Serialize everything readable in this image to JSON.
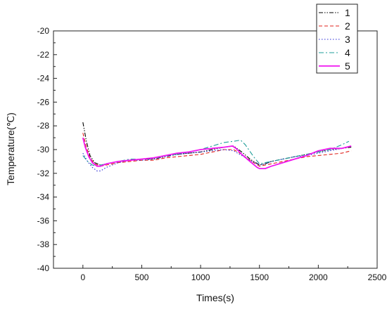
{
  "chart_data": {
    "type": "line",
    "title": "",
    "xlabel": "Times(s)",
    "ylabel": "Temperature(℃)",
    "xlim": [
      -250,
      2500
    ],
    "ylim": [
      -40,
      -20
    ],
    "xticks": [
      0,
      500,
      1000,
      1500,
      2000,
      2500
    ],
    "yticks": [
      -40,
      -38,
      -36,
      -34,
      -32,
      -30,
      -28,
      -26,
      -24,
      -22,
      -20
    ],
    "grid": false,
    "legend": "top-right",
    "series": [
      {
        "name": "1",
        "color": "#000000",
        "dash": "dash-dot-dot",
        "x": [
          0,
          30,
          60,
          100,
          150,
          200,
          300,
          400,
          500,
          600,
          700,
          800,
          900,
          1000,
          1100,
          1200,
          1280,
          1350,
          1420,
          1500,
          1550,
          1600,
          1700,
          1800,
          1900,
          2000,
          2100,
          2200,
          2280
        ],
        "y": [
          -27.7,
          -29.3,
          -30.5,
          -31.1,
          -31.3,
          -31.2,
          -31.0,
          -30.9,
          -30.8,
          -30.8,
          -30.6,
          -30.4,
          -30.3,
          -30.2,
          -30.0,
          -29.8,
          -29.7,
          -30.2,
          -30.8,
          -31.3,
          -31.2,
          -31.0,
          -30.8,
          -30.6,
          -30.4,
          -30.2,
          -30.0,
          -29.9,
          -29.8
        ]
      },
      {
        "name": "2",
        "color": "#e0201b",
        "dash": "dash",
        "x": [
          0,
          30,
          60,
          100,
          150,
          200,
          300,
          400,
          500,
          600,
          700,
          800,
          900,
          1000,
          1100,
          1200,
          1280,
          1350,
          1420,
          1500,
          1550,
          1600,
          1700,
          1800,
          1900,
          2000,
          2100,
          2200,
          2280
        ],
        "y": [
          -28.6,
          -29.8,
          -30.7,
          -31.2,
          -31.4,
          -31.3,
          -31.1,
          -31.0,
          -30.9,
          -30.9,
          -30.7,
          -30.6,
          -30.5,
          -30.4,
          -30.2,
          -30.0,
          -30.0,
          -30.4,
          -30.9,
          -31.4,
          -31.3,
          -31.2,
          -31.0,
          -30.8,
          -30.6,
          -30.5,
          -30.4,
          -30.3,
          -30.1
        ]
      },
      {
        "name": "3",
        "color": "#2a2ad6",
        "dash": "dot",
        "x": [
          0,
          40,
          80,
          120,
          150,
          200,
          300,
          400,
          500,
          600,
          700,
          800,
          900,
          1000,
          1100,
          1200,
          1280,
          1350,
          1420,
          1500,
          1550,
          1600,
          1700,
          1800,
          1900,
          2000,
          2100,
          2200,
          2280
        ],
        "y": [
          -30.3,
          -31.0,
          -31.5,
          -31.8,
          -31.8,
          -31.5,
          -31.1,
          -30.9,
          -30.9,
          -30.8,
          -30.6,
          -30.4,
          -30.3,
          -30.2,
          -30.1,
          -30.0,
          -30.1,
          -30.5,
          -30.9,
          -31.3,
          -31.2,
          -31.0,
          -30.8,
          -30.6,
          -30.5,
          -30.3,
          -30.1,
          -29.9,
          -29.7
        ]
      },
      {
        "name": "4",
        "color": "#1f9e99",
        "dash": "dash-dot",
        "x": [
          0,
          40,
          80,
          120,
          150,
          200,
          300,
          400,
          500,
          600,
          700,
          800,
          900,
          1000,
          1100,
          1200,
          1280,
          1340,
          1380,
          1450,
          1500,
          1550,
          1600,
          1700,
          1800,
          1900,
          2000,
          2100,
          2200,
          2260
        ],
        "y": [
          -30.5,
          -31.0,
          -31.3,
          -31.4,
          -31.3,
          -31.2,
          -31.0,
          -30.8,
          -30.8,
          -30.7,
          -30.5,
          -30.4,
          -30.2,
          -30.0,
          -29.7,
          -29.4,
          -29.3,
          -29.2,
          -29.6,
          -30.6,
          -31.2,
          -31.1,
          -31.0,
          -30.8,
          -30.6,
          -30.4,
          -30.2,
          -30.0,
          -29.6,
          -29.3
        ]
      },
      {
        "name": "5",
        "color": "#f016f0",
        "dash": "solid",
        "x": [
          0,
          20,
          50,
          80,
          120,
          150,
          200,
          300,
          400,
          500,
          600,
          700,
          800,
          900,
          1000,
          1100,
          1200,
          1270,
          1300,
          1350,
          1420,
          1480,
          1500,
          1550,
          1600,
          1700,
          1800,
          1900,
          2000,
          2100,
          2200,
          2280
        ],
        "y": [
          -29.0,
          -29.8,
          -30.6,
          -31.1,
          -31.4,
          -31.4,
          -31.2,
          -31.0,
          -30.9,
          -30.8,
          -30.7,
          -30.5,
          -30.3,
          -30.2,
          -30.0,
          -29.9,
          -29.8,
          -29.7,
          -29.9,
          -30.4,
          -31.0,
          -31.5,
          -31.6,
          -31.6,
          -31.4,
          -31.1,
          -30.8,
          -30.5,
          -30.1,
          -29.9,
          -29.9,
          -29.7
        ]
      }
    ]
  }
}
